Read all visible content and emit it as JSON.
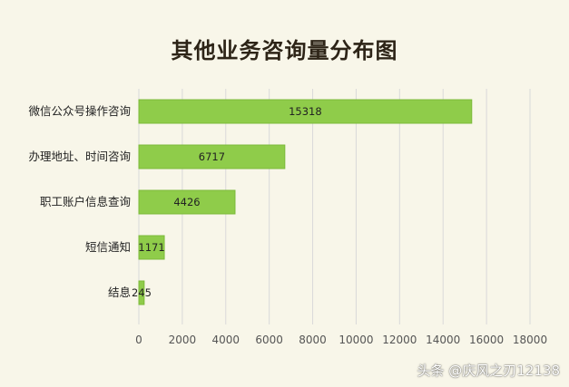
{
  "chart_data": {
    "type": "bar",
    "orientation": "horizontal",
    "title": "其他业务咨询量分布图",
    "categories": [
      "微信公众号操作咨询",
      "办理地址、时间咨询",
      "职工账户信息查询",
      "短信通知",
      "结息"
    ],
    "values": [
      15318,
      6717,
      4426,
      1171,
      245
    ],
    "data_labels": [
      "15318",
      "6717",
      "4426",
      "1171",
      "245"
    ],
    "xlim": [
      0,
      18000
    ],
    "x_ticks": [
      "0",
      "2000",
      "4000",
      "6000",
      "8000",
      "10000",
      "12000",
      "14000",
      "16000",
      "18000"
    ],
    "xlabel": "",
    "ylabel": "",
    "grid": true,
    "legend": "none",
    "colors": {
      "bar": "#8fcc4a",
      "bar_edge": "#7cba3a",
      "grid": "#d9d9d9",
      "background": "#f8f6e9",
      "label": "#222222",
      "axis_text": "#555555"
    }
  },
  "watermark": "头条 @庆风之刃12138"
}
